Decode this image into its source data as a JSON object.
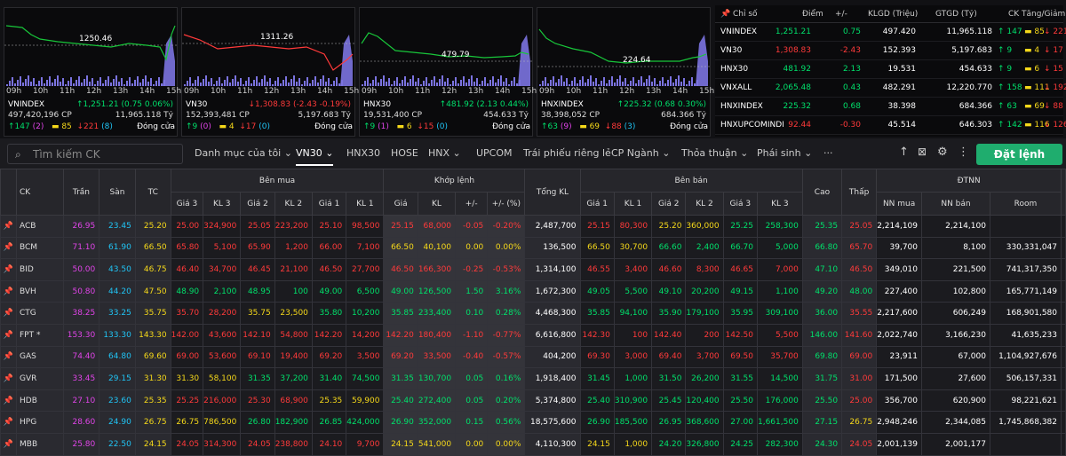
{
  "charts": [
    {
      "name": "VNINDEX",
      "ref": "1250.46",
      "value": "↑1,251.21 (0.75 0.06%)",
      "vol": "497,420,196 CP",
      "val": "11,965.118 Tỷ",
      "up": "↑147",
      "up2": "(2)",
      "flat": "85",
      "down": "↓221",
      "down2": "(8)",
      "status": "Đóng cửa",
      "color": "#00e06b"
    },
    {
      "name": "VN30",
      "ref": "1311.26",
      "value": "↓1,308.83 (-2.43 -0.19%)",
      "vol": "152,393,481 CP",
      "val": "5,197.683 Tỷ",
      "up": "↑9",
      "up2": "(0)",
      "flat": "4",
      "down": "↓17",
      "down2": "(0)",
      "status": "Đóng cửa",
      "color": "#ff3a3a"
    },
    {
      "name": "HNX30",
      "ref": "479.79",
      "value": "↑481.92 (2.13 0.44%)",
      "vol": "19,531,400 CP",
      "val": "454.633 Tỷ",
      "up": "↑9",
      "up2": "(1)",
      "flat": "6",
      "down": "↓15",
      "down2": "(0)",
      "status": "Đóng cửa",
      "color": "#00e06b"
    },
    {
      "name": "HNXINDEX",
      "ref": "224.64",
      "value": "↑225.32 (0.68 0.30%)",
      "vol": "38,398,052 CP",
      "val": "684.366 Tỷ",
      "up": "↑63",
      "up2": "(9)",
      "flat": "69",
      "down": "↓88",
      "down2": "(3)",
      "status": "Đóng cửa",
      "color": "#00e06b"
    }
  ],
  "hours": [
    "09h",
    "10h",
    "11h",
    "12h",
    "13h",
    "14h",
    "15h"
  ],
  "index_table": {
    "headers": [
      "Chỉ số",
      "Điểm",
      "+/-",
      "KLGD (Triệu)",
      "GTGD (Tỷ)",
      "CK Tăng/Giảm"
    ],
    "rows": [
      {
        "name": "VNINDEX",
        "point": "1,251.21",
        "chg": "0.75",
        "kl": "497.420",
        "gt": "11,965.118",
        "up": "↑ 147",
        "flat": "85",
        "down": "↓ 221",
        "cls": "g"
      },
      {
        "name": "VN30",
        "point": "1,308.83",
        "chg": "-2.43",
        "kl": "152.393",
        "gt": "5,197.683",
        "up": "↑ 9",
        "flat": "4",
        "down": "↓ 17",
        "cls": "r"
      },
      {
        "name": "HNX30",
        "point": "481.92",
        "chg": "2.13",
        "kl": "19.531",
        "gt": "454.633",
        "up": "↑ 9",
        "flat": "6",
        "down": "↓ 15",
        "cls": "g"
      },
      {
        "name": "VNXALL",
        "point": "2,065.48",
        "chg": "0.43",
        "kl": "482.291",
        "gt": "12,220.770",
        "up": "↑ 158",
        "flat": "111",
        "down": "↓ 192",
        "cls": "g"
      },
      {
        "name": "HNXINDEX",
        "point": "225.32",
        "chg": "0.68",
        "kl": "38.398",
        "gt": "684.366",
        "up": "↑ 63",
        "flat": "69",
        "down": "↓ 88",
        "cls": "g"
      },
      {
        "name": "HNXUPCOMINDI",
        "point": "92.44",
        "chg": "-0.30",
        "kl": "45.514",
        "gt": "646.303",
        "up": "↑ 142",
        "flat": "116",
        "down": "↓ 126",
        "cls": "r"
      }
    ]
  },
  "toolbar": {
    "search_placeholder": "Tìm kiếm CK",
    "tabs": [
      "Danh mục của tôi ⌄",
      "VN30 ⌄",
      "HNX30",
      "HOSE",
      "HNX ⌄",
      "UPCOM",
      "Trái phiếu riêng lẻ",
      "CP Ngành ⌄",
      "Thỏa thuận ⌄",
      "Phái sinh ⌄",
      "···"
    ],
    "order_button": "Đặt lệnh"
  },
  "table": {
    "group_headers": [
      "Bên mua",
      "Khớp lệnh",
      "Bên bán",
      "ĐTNN"
    ],
    "headers": [
      "CK",
      "Trần",
      "Sàn",
      "TC",
      "Giá 3",
      "KL 3",
      "Giá 2",
      "KL 2",
      "Giá 1",
      "KL 1",
      "Giá",
      "KL",
      "+/-",
      "+/- (%)",
      "Tổng KL",
      "Giá 1",
      "KL 1",
      "Giá 2",
      "KL 2",
      "Giá 3",
      "KL 3",
      "Cao",
      "Thấp",
      "NN mua",
      "NN bán",
      "Room"
    ],
    "rows": [
      [
        "ACB",
        "26.95",
        "23.45",
        "25.20",
        "25.00",
        "324,900",
        "25.05",
        "223,200",
        "25.10",
        "98,500",
        "25.15",
        "68,000",
        "-0.05",
        "-0.20%",
        "2,487,700",
        "25.15",
        "80,300",
        "25.20",
        "360,000",
        "25.25",
        "258,300",
        "25.35",
        "25.05",
        "2,214,109",
        "2,214,100",
        ""
      ],
      [
        "BCM",
        "71.10",
        "61.90",
        "66.50",
        "65.80",
        "5,100",
        "65.90",
        "1,200",
        "66.00",
        "7,100",
        "66.50",
        "40,100",
        "0.00",
        "0.00%",
        "136,500",
        "66.50",
        "30,700",
        "66.60",
        "2,400",
        "66.70",
        "5,000",
        "66.80",
        "65.70",
        "39,700",
        "8,100",
        "330,331,047"
      ],
      [
        "BID",
        "50.00",
        "43.50",
        "46.75",
        "46.40",
        "34,700",
        "46.45",
        "21,100",
        "46.50",
        "27,700",
        "46.50",
        "166,300",
        "-0.25",
        "-0.53%",
        "1,314,100",
        "46.55",
        "3,400",
        "46.60",
        "8,300",
        "46.65",
        "7,000",
        "47.10",
        "46.50",
        "349,010",
        "221,500",
        "741,317,350"
      ],
      [
        "BVH",
        "50.80",
        "44.20",
        "47.50",
        "48.90",
        "2,100",
        "48.95",
        "100",
        "49.00",
        "6,500",
        "49.00",
        "126,500",
        "1.50",
        "3.16%",
        "1,672,300",
        "49.05",
        "5,500",
        "49.10",
        "20,200",
        "49.15",
        "1,100",
        "49.20",
        "48.00",
        "227,400",
        "102,800",
        "165,771,149"
      ],
      [
        "CTG",
        "38.25",
        "33.25",
        "35.75",
        "35.70",
        "28,200",
        "35.75",
        "23,500",
        "35.80",
        "10,200",
        "35.85",
        "233,400",
        "0.10",
        "0.28%",
        "4,468,300",
        "35.85",
        "94,100",
        "35.90",
        "179,100",
        "35.95",
        "309,100",
        "36.00",
        "35.55",
        "2,217,600",
        "606,249",
        "168,901,580"
      ],
      [
        "FPT *",
        "153.30",
        "133.30",
        "143.30",
        "142.00",
        "43,600",
        "142.10",
        "54,800",
        "142.20",
        "14,200",
        "142.20",
        "180,400",
        "-1.10",
        "-0.77%",
        "6,616,800",
        "142.30",
        "100",
        "142.40",
        "200",
        "142.50",
        "5,500",
        "146.00",
        "141.60",
        "2,022,740",
        "3,166,230",
        "41,635,233"
      ],
      [
        "GAS",
        "74.40",
        "64.80",
        "69.60",
        "69.00",
        "53,600",
        "69.10",
        "19,400",
        "69.20",
        "3,500",
        "69.20",
        "33,500",
        "-0.40",
        "-0.57%",
        "404,200",
        "69.30",
        "3,000",
        "69.40",
        "3,700",
        "69.50",
        "35,700",
        "69.80",
        "69.00",
        "23,911",
        "67,000",
        "1,104,927,676"
      ],
      [
        "GVR",
        "33.45",
        "29.15",
        "31.30",
        "31.30",
        "58,100",
        "31.35",
        "37,200",
        "31.40",
        "74,500",
        "31.35",
        "130,700",
        "0.05",
        "0.16%",
        "1,918,400",
        "31.45",
        "1,000",
        "31.50",
        "26,200",
        "31.55",
        "14,500",
        "31.75",
        "31.00",
        "171,500",
        "27,600",
        "506,157,331"
      ],
      [
        "HDB",
        "27.10",
        "23.60",
        "25.35",
        "25.25",
        "216,000",
        "25.30",
        "68,900",
        "25.35",
        "59,900",
        "25.40",
        "272,400",
        "0.05",
        "0.20%",
        "5,374,800",
        "25.40",
        "310,900",
        "25.45",
        "120,400",
        "25.50",
        "176,000",
        "25.50",
        "25.00",
        "356,700",
        "620,900",
        "98,221,621"
      ],
      [
        "HPG",
        "28.60",
        "24.90",
        "26.75",
        "26.75",
        "786,500",
        "26.80",
        "182,900",
        "26.85",
        "424,000",
        "26.90",
        "352,000",
        "0.15",
        "0.56%",
        "18,575,600",
        "26.90",
        "185,500",
        "26.95",
        "368,600",
        "27.00",
        "1,661,500",
        "27.15",
        "26.75",
        "2,948,246",
        "2,344,085",
        "1,745,868,382"
      ],
      [
        "MBB",
        "25.80",
        "22.50",
        "24.15",
        "24.05",
        "314,300",
        "24.05",
        "238,800",
        "24.10",
        "9,700",
        "24.15",
        "541,000",
        "0.00",
        "0.00%",
        "4,110,300",
        "24.15",
        "1,000",
        "24.20",
        "326,800",
        "24.25",
        "282,300",
        "24.30",
        "24.05",
        "2,001,139",
        "2,001,177",
        ""
      ]
    ]
  }
}
